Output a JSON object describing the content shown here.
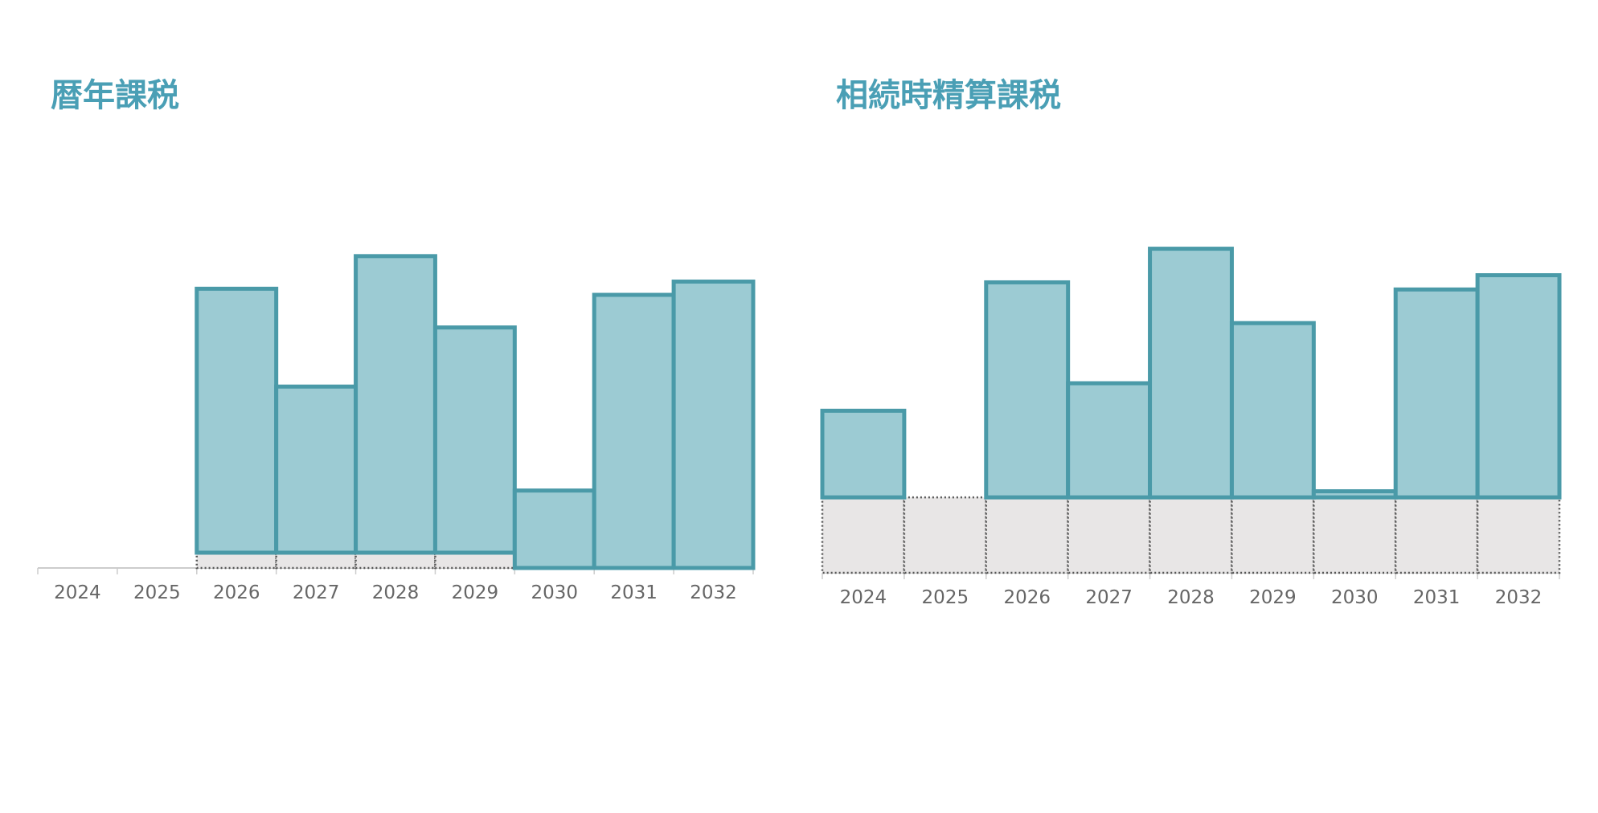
{
  "chart_data": [
    {
      "type": "bar",
      "stacked": true,
      "title": "暦年課税",
      "categories": [
        "2024",
        "2025",
        "2026",
        "2027",
        "2028",
        "2029",
        "2030",
        "2031",
        "2032"
      ],
      "series": [
        {
          "color": "#e8e6e6",
          "edgecolor": "#555555",
          "values": [
            0,
            0,
            1.5,
            1.5,
            1.5,
            1.5,
            0,
            0,
            0
          ]
        },
        {
          "color": "#9ccbd3",
          "edgecolor": "#4a9aa8",
          "values": [
            0,
            0,
            25.9,
            16.3,
            29.1,
            22.1,
            7.6,
            26.8,
            28.1
          ]
        }
      ],
      "ylim": [
        0,
        35
      ]
    },
    {
      "type": "bar",
      "stacked": true,
      "title": "相続時精算課税",
      "categories": [
        "2024",
        "2025",
        "2026",
        "2027",
        "2028",
        "2029",
        "2030",
        "2031",
        "2032"
      ],
      "series": [
        {
          "color": "#e8e6e6",
          "edgecolor": "#555555",
          "values": [
            7.4,
            7.4,
            7.4,
            7.4,
            7.4,
            7.4,
            7.4,
            7.4,
            7.4
          ]
        },
        {
          "color": "#9ccbd3",
          "edgecolor": "#4a9aa8",
          "values": [
            8.5,
            0,
            21.1,
            11.2,
            24.4,
            17.1,
            0.6,
            20.4,
            21.8
          ]
        }
      ],
      "ylim": [
        0,
        35
      ]
    }
  ]
}
